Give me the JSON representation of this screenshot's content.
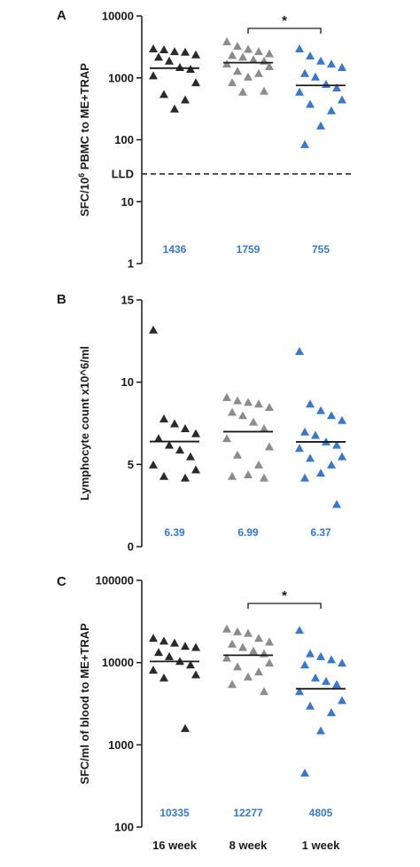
{
  "categories": [
    "16 week",
    "8 week",
    "1 week"
  ],
  "colors": [
    "#2a2a2a",
    "#8c8c8c",
    "#3a78c9"
  ],
  "median_color": "#3a78c9",
  "chart_data": [
    {
      "panel": "A",
      "type": "scatter",
      "ylabel_prefix": "SFC/10",
      "ylabel_sup": "6",
      "ylabel_suffix": " PBMC to ME+TRAP",
      "yscale": "log",
      "ylim": [
        1,
        10000
      ],
      "ticks": [
        1,
        10,
        100,
        1000,
        10000
      ],
      "tick_labels": [
        "1",
        "10",
        "100",
        "1000",
        "10000"
      ],
      "lld": {
        "label": "LLD",
        "value": 28
      },
      "series": [
        {
          "category": "16 week",
          "values": [
            3000,
            2900,
            2700,
            2650,
            2400,
            2200,
            1900,
            1500,
            1400,
            1100,
            850,
            550,
            450,
            320
          ],
          "median": 1436,
          "median_label": "1436"
        },
        {
          "category": "8 week",
          "values": [
            3900,
            3300,
            2950,
            2700,
            2500,
            2350,
            2200,
            2000,
            1900,
            1700,
            1550,
            1300,
            1200,
            1050,
            850,
            620,
            600
          ],
          "median": 1759,
          "median_label": "1759"
        },
        {
          "category": "1 week",
          "values": [
            3000,
            2300,
            1900,
            1700,
            1500,
            1200,
            1050,
            800,
            700,
            600,
            450,
            380,
            300,
            170,
            85
          ],
          "median": 755,
          "median_label": "755"
        }
      ],
      "significance": {
        "from": "8 week",
        "to": "1 week",
        "label": "*"
      }
    },
    {
      "panel": "B",
      "type": "scatter",
      "ylabel": "Lymphocyte count x10^6/ml",
      "yscale": "linear",
      "ylim": [
        0,
        15
      ],
      "ticks": [
        0,
        5,
        10,
        15
      ],
      "tick_labels": [
        "0",
        "5",
        "10",
        "15"
      ],
      "series": [
        {
          "category": "16 week",
          "values": [
            13.2,
            7.8,
            7.5,
            7.2,
            6.9,
            6.6,
            6.2,
            5.9,
            5.5,
            5.0,
            4.7,
            4.3,
            4.2
          ],
          "median": 6.39,
          "median_label": "6.39"
        },
        {
          "category": "8 week",
          "values": [
            9.1,
            8.9,
            8.8,
            8.7,
            8.5,
            8.2,
            8.0,
            7.6,
            7.2,
            6.6,
            6.1,
            5.6,
            5.0,
            4.4,
            4.3,
            4.2
          ],
          "median": 6.99,
          "median_label": "6.99"
        },
        {
          "category": "1 week",
          "values": [
            11.9,
            8.7,
            8.3,
            8.0,
            7.7,
            7.0,
            6.8,
            6.4,
            6.2,
            6.0,
            5.5,
            5.4,
            5.0,
            4.5,
            4.2,
            2.6
          ],
          "median": 6.37,
          "median_label": "6.37"
        }
      ]
    },
    {
      "panel": "C",
      "type": "scatter",
      "ylabel": "SFC/ml of blood to ME+TRAP",
      "yscale": "log",
      "ylim": [
        100,
        100000
      ],
      "ticks": [
        100,
        1000,
        10000,
        100000
      ],
      "tick_labels": [
        "100",
        "1000",
        "10000",
        "100000"
      ],
      "series": [
        {
          "category": "16 week",
          "values": [
            20000,
            18500,
            17500,
            16000,
            15500,
            13500,
            12000,
            10500,
            9500,
            8200,
            7200,
            6600,
            1600
          ],
          "median": 10335,
          "median_label": "10335"
        },
        {
          "category": "8 week",
          "values": [
            26000,
            24000,
            23000,
            20000,
            18000,
            17000,
            15500,
            14000,
            13000,
            11500,
            10000,
            9000,
            7800,
            6800,
            5500,
            4500
          ],
          "median": 12277,
          "median_label": "12277"
        },
        {
          "category": "1 week",
          "values": [
            25000,
            13000,
            12000,
            11000,
            10000,
            9500,
            6600,
            6000,
            5500,
            4500,
            3500,
            3000,
            2500,
            1500,
            460
          ],
          "median": 4805,
          "median_label": "4805"
        }
      ],
      "significance": {
        "from": "8 week",
        "to": "1 week",
        "label": "*"
      }
    }
  ]
}
